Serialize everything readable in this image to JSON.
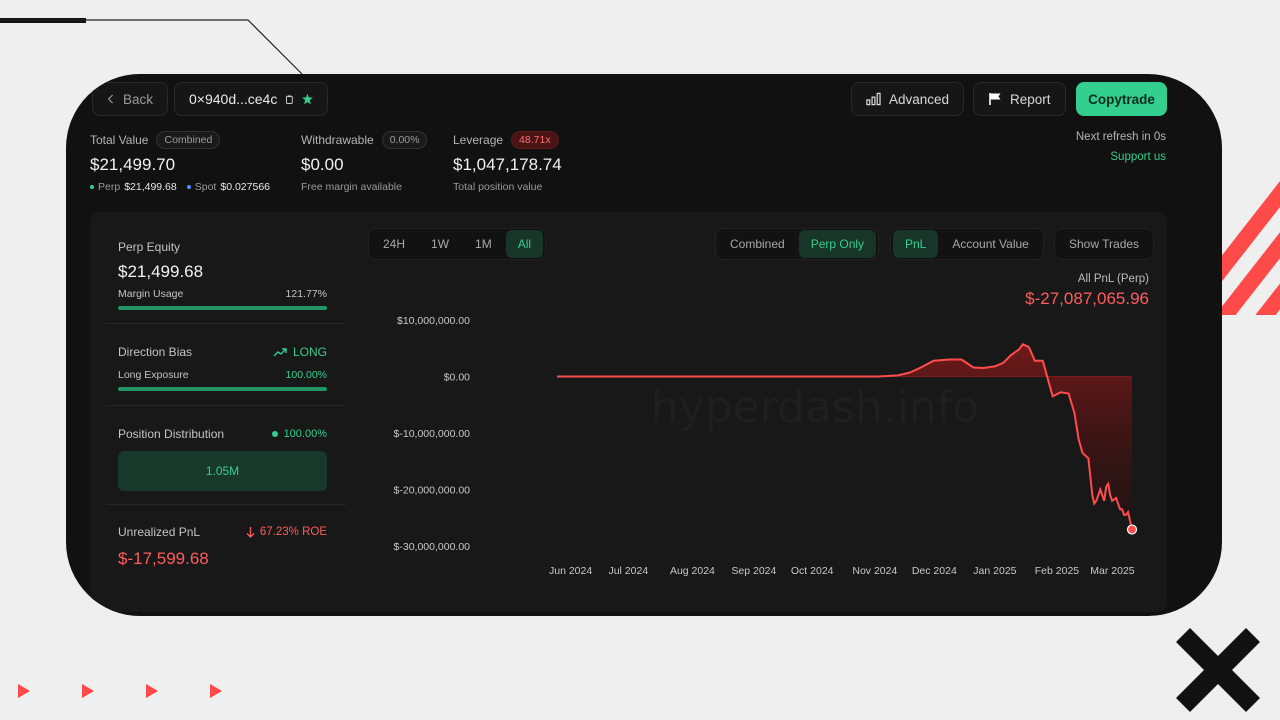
{
  "header": {
    "back_label": "Back",
    "address": "0×940d...ce4c",
    "advanced_label": "Advanced",
    "report_label": "Report",
    "copytrade_label": "Copytrade"
  },
  "stats": {
    "total_value_label": "Total Value",
    "total_value_badge": "Combined",
    "total_value": "$21,499.70",
    "perp_label": "Perp",
    "perp_value": "$21,499.68",
    "spot_label": "Spot",
    "spot_value": "$0.027566",
    "withdrawable_label": "Withdrawable",
    "withdrawable_badge": "0.00%",
    "withdrawable_value": "$0.00",
    "withdrawable_sub": "Free margin available",
    "leverage_label": "Leverage",
    "leverage_badge": "48.71x",
    "leverage_value": "$1,047,178.74",
    "leverage_sub": "Total position value",
    "refresh_text": "Next refresh in 0s",
    "support_text": "Support us"
  },
  "left_panel": {
    "perp_equity_label": "Perp Equity",
    "perp_equity_value": "$21,499.68",
    "margin_usage_label": "Margin Usage",
    "margin_usage_value": "121.77%",
    "direction_bias_label": "Direction Bias",
    "direction_bias_value": "LONG",
    "long_exposure_label": "Long Exposure",
    "long_exposure_value": "100.00%",
    "position_distribution_label": "Position Distribution",
    "position_distribution_value": "100.00%",
    "distribution_bar_label": "1.05M",
    "unrealized_pnl_label": "Unrealized PnL",
    "roe_value": "67.23% ROE",
    "unrealized_pnl_value": "$-17,599.68"
  },
  "time_tabs": [
    "24H",
    "1W",
    "1M",
    "All"
  ],
  "active_time_tab": "All",
  "view_tabs": [
    "Combined",
    "Perp Only"
  ],
  "active_view_tab": "Perp Only",
  "metric_tabs": [
    "PnL",
    "Account Value"
  ],
  "active_metric_tab": "PnL",
  "show_trades_label": "Show Trades",
  "watermark": "hyperdash.info",
  "colors": {
    "accent": "#33cf8e",
    "loss": "#ff4d4d",
    "background": "#111111"
  },
  "chart_data": {
    "type": "area",
    "title": "All PnL (Perp)",
    "current_value_label": "$-27,087,065.96",
    "y_tick_labels": [
      "$10,000,000.00",
      "$0.00",
      "$-10,000,000.00",
      "$-20,000,000.00",
      "$-30,000,000.00"
    ],
    "y_ticks": [
      10000000,
      0,
      -10000000,
      -20000000,
      -30000000
    ],
    "ylim": [
      -30000000,
      10000000
    ],
    "x_tick_labels": [
      "Jun 2024",
      "Jul 2024",
      "Aug 2024",
      "Sep 2024",
      "Oct 2024",
      "Nov 2024",
      "Dec 2024",
      "Jan 2025",
      "Feb 2025",
      "Mar 2025"
    ],
    "x_ticks": [
      "2024-06-01",
      "2024-07-01",
      "2024-08-01",
      "2024-09-01",
      "2024-10-01",
      "2024-11-01",
      "2024-12-01",
      "2025-01-01",
      "2025-02-01",
      "2025-03-01"
    ],
    "xlim": [
      "2024-06-01",
      "2025-03-18"
    ],
    "grid": false,
    "series": [
      {
        "x": [
          "2024-06-01",
          "2024-11-10",
          "2024-11-20",
          "2024-11-26",
          "2024-12-01",
          "2024-12-08",
          "2024-12-16",
          "2024-12-22",
          "2024-12-28",
          "2025-01-02",
          "2025-01-08",
          "2025-01-12",
          "2025-01-16",
          "2025-01-20",
          "2025-01-22",
          "2025-01-25",
          "2025-01-28",
          "2025-02-01",
          "2025-02-04",
          "2025-02-06",
          "2025-02-10",
          "2025-02-14",
          "2025-02-17",
          "2025-02-19",
          "2025-02-21",
          "2025-02-24",
          "2025-02-26",
          "2025-02-27",
          "2025-02-28",
          "2025-03-02",
          "2025-03-04",
          "2025-03-05",
          "2025-03-06",
          "2025-03-07",
          "2025-03-08",
          "2025-03-10",
          "2025-03-12",
          "2025-03-13",
          "2025-03-14",
          "2025-03-15",
          "2025-03-16",
          "2025-03-17",
          "2025-03-18"
        ],
        "y": [
          0,
          0,
          200000,
          700000,
          1500000,
          2800000,
          3000000,
          3000000,
          1600000,
          1500000,
          1800000,
          2400000,
          3800000,
          4800000,
          5700000,
          5200000,
          2800000,
          2800000,
          -1000000,
          -3500000,
          -2800000,
          -3000000,
          -6500000,
          -11000000,
          -13500000,
          -14500000,
          -21000000,
          -22500000,
          -22000000,
          -20000000,
          -22000000,
          -19500000,
          -19000000,
          -21000000,
          -22000000,
          -21500000,
          -23500000,
          -23500000,
          -24500000,
          -24500000,
          -24000000,
          -25500000,
          -27087066
        ]
      }
    ]
  }
}
